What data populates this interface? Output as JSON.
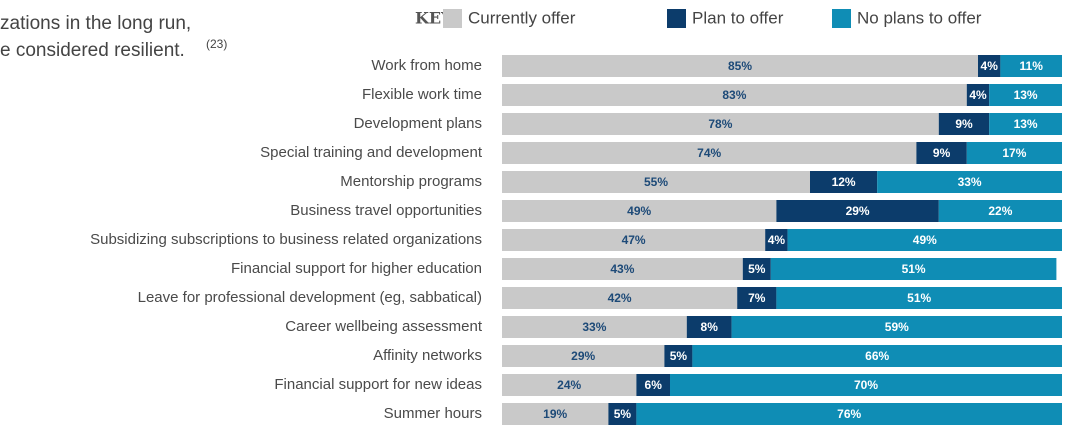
{
  "chart_data": {
    "type": "stacked_bar_horizontal",
    "annotations": [
      "zations in the long run,",
      "e considered resilient."
    ],
    "footnote_marker": "(23)",
    "legend_title": "KEY",
    "categories": [
      "Work from home",
      "Flexible work time",
      "Development plans",
      "Special training and development",
      "Mentorship programs",
      "Business travel opportunities",
      "Subsidizing subscriptions to business related organizations",
      "Financial support for higher education",
      "Leave for professional development (eg, sabbatical)",
      "Career wellbeing assessment",
      "Affinity networks",
      "Financial support for new ideas",
      "Summer hours"
    ],
    "xlim": [
      0,
      100
    ],
    "series": [
      {
        "name": "Currently offer",
        "color": "#c9c9c9",
        "label_color": "#1d4a78",
        "values": [
          85,
          83,
          78,
          74,
          55,
          49,
          47,
          43,
          42,
          33,
          29,
          24,
          19
        ],
        "value_labels": [
          "85%",
          "83%",
          "78%",
          "74%",
          "55%",
          "49%",
          "47%",
          "43%",
          "42%",
          "33%",
          "29%",
          "24%",
          "19%"
        ]
      },
      {
        "name": "Plan to offer",
        "color": "#0c3c6b",
        "label_color": "#ffffff",
        "values": [
          4,
          4,
          9,
          9,
          12,
          29,
          4,
          5,
          7,
          8,
          5,
          6,
          5
        ],
        "value_labels": [
          "4%",
          "4%",
          "9%",
          "9%",
          "12%",
          "29%",
          "4%",
          "5%",
          "7%",
          "8%",
          "5%",
          "6%",
          "5%"
        ]
      },
      {
        "name": "No plans to offer",
        "color": "#0f8db5",
        "label_color": "#ffffff",
        "values": [
          11,
          13,
          13,
          17,
          33,
          22,
          49,
          51,
          51,
          59,
          66,
          70,
          76
        ],
        "value_labels": [
          "11%",
          "13%",
          "13%",
          "17%",
          "33%",
          "22%",
          "49%",
          "51%",
          "51%",
          "59%",
          "66%",
          "70%",
          "76%"
        ]
      }
    ]
  }
}
